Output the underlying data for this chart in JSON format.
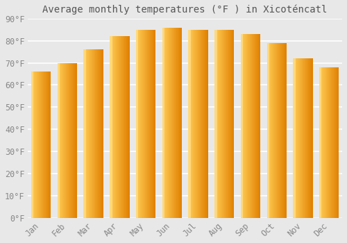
{
  "months": [
    "Jan",
    "Feb",
    "Mar",
    "Apr",
    "May",
    "Jun",
    "Jul",
    "Aug",
    "Sep",
    "Oct",
    "Nov",
    "Dec"
  ],
  "values": [
    66,
    70,
    76,
    82,
    85,
    86,
    85,
    85,
    83,
    79,
    72,
    68
  ],
  "bar_color_main": "#FFA500",
  "bar_color_light": "#FFCC55",
  "bar_color_dark": "#E08000",
  "title": "Average monthly temperatures (°F ) in Xicoténcatl",
  "ylim": [
    0,
    90
  ],
  "yticks": [
    0,
    10,
    20,
    30,
    40,
    50,
    60,
    70,
    80,
    90
  ],
  "ytick_labels": [
    "0°F",
    "10°F",
    "20°F",
    "30°F",
    "40°F",
    "50°F",
    "60°F",
    "70°F",
    "80°F",
    "90°F"
  ],
  "background_color": "#e8e8e8",
  "plot_bg_color": "#e8e8e8",
  "grid_color": "#ffffff",
  "tick_color": "#888888",
  "title_color": "#555555",
  "title_fontsize": 10,
  "tick_fontsize": 8.5,
  "bar_width": 0.75
}
